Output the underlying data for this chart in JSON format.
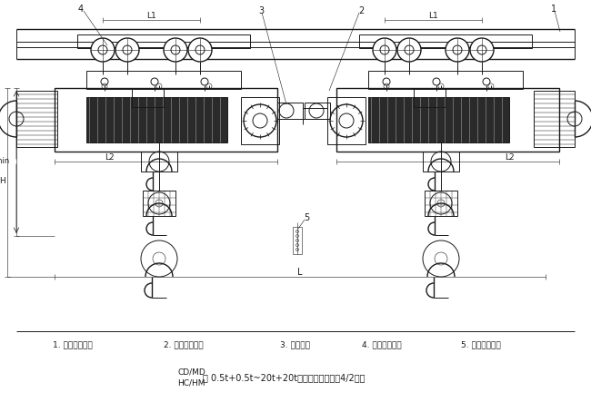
{
  "bg_color": "#ffffff",
  "line_color": "#1a1a1a",
  "label1": "1. 正相电动葫芦",
  "label2": "2. 同步机减速箱",
  "label3": "3. 连接装置",
  "label4": "4. 反相电动葫芦",
  "label5": "5. 同步电气控制",
  "bottom_line1": "CD/MD",
  "bottom_line2": "HC/HM",
  "bottom_text": "型 0.5t+0.5t~20t+20t双钩点电动葫芦（4/2绳）",
  "dim_L1": "L1",
  "dim_L2": "L2",
  "dim_L": "L",
  "dim_H": "H",
  "dim_Hmin": "Hmin"
}
